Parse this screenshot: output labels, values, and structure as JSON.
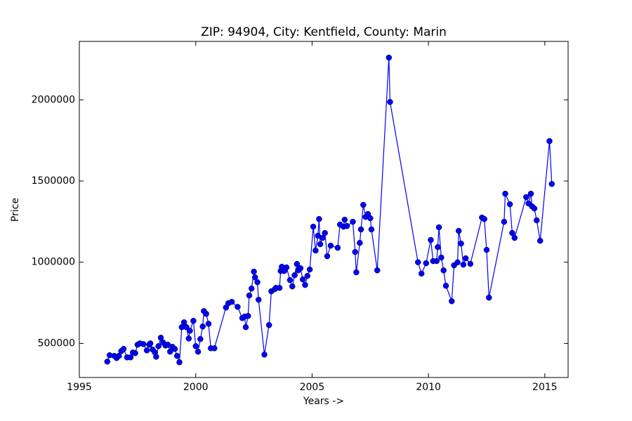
{
  "chart_data": {
    "type": "line",
    "title": "ZIP: 94904, City: Kentfield, County: Marin",
    "x_label": "Years ->",
    "y_label": "Price",
    "xlim": [
      1995,
      2016
    ],
    "xticks": [
      1995,
      2000,
      2005,
      2010,
      2015
    ],
    "ylim": [
      290000,
      2360000
    ],
    "yticks": [
      500000,
      1000000,
      1500000,
      2000000
    ],
    "grid": false,
    "series": [
      {
        "name": "Price",
        "color": "#0000ff",
        "x": [
          1996.2,
          1996.3,
          1996.5,
          1996.6,
          1996.7,
          1996.8,
          1996.9,
          1997.05,
          1997.2,
          1997.3,
          1997.4,
          1997.5,
          1997.6,
          1997.75,
          1997.9,
          1998.0,
          1998.05,
          1998.15,
          1998.25,
          1998.3,
          1998.4,
          1998.5,
          1998.6,
          1998.7,
          1998.8,
          1998.9,
          1999.0,
          1999.1,
          1999.2,
          1999.3,
          1999.4,
          1999.5,
          1999.6,
          1999.7,
          1999.75,
          1999.9,
          2000.0,
          2000.1,
          2000.2,
          2000.3,
          2000.35,
          2000.45,
          2000.55,
          2000.65,
          2000.8,
          2001.3,
          2001.4,
          2001.55,
          2001.8,
          2002.0,
          2002.1,
          2002.15,
          2002.25,
          2002.3,
          2002.4,
          2002.5,
          2002.55,
          2002.65,
          2002.7,
          2002.95,
          2003.15,
          2003.25,
          2003.4,
          2003.45,
          2003.6,
          2003.65,
          2003.7,
          2003.8,
          2003.9,
          2004.05,
          2004.15,
          2004.25,
          2004.35,
          2004.4,
          2004.5,
          2004.6,
          2004.7,
          2004.8,
          2004.9,
          2005.05,
          2005.15,
          2005.25,
          2005.3,
          2005.35,
          2005.45,
          2005.55,
          2005.65,
          2005.8,
          2006.1,
          2006.2,
          2006.35,
          2006.4,
          2006.5,
          2006.75,
          2006.85,
          2006.9,
          2007.05,
          2007.1,
          2007.2,
          2007.3,
          2007.4,
          2007.5,
          2007.55,
          2007.8,
          2008.3,
          2008.35,
          2009.55,
          2009.7,
          2009.9,
          2010.1,
          2010.2,
          2010.35,
          2010.4,
          2010.45,
          2010.55,
          2010.65,
          2010.75,
          2011.0,
          2011.1,
          2011.25,
          2011.3,
          2011.4,
          2011.5,
          2011.6,
          2011.8,
          2012.3,
          2012.4,
          2012.5,
          2012.6,
          2013.25,
          2013.3,
          2013.5,
          2013.6,
          2013.7,
          2014.2,
          2014.3,
          2014.4,
          2014.45,
          2014.55,
          2014.65,
          2014.8,
          2015.2,
          2015.3
        ],
        "values": [
          388000,
          427000,
          423000,
          410000,
          423000,
          453000,
          466000,
          414000,
          414000,
          444000,
          440000,
          492000,
          500000,
          496000,
          457000,
          492000,
          500000,
          462000,
          444000,
          418000,
          483000,
          535000,
          505000,
          487000,
          492000,
          449000,
          479000,
          466000,
          423000,
          384000,
          600000,
          630000,
          600000,
          530000,
          578000,
          639000,
          483000,
          449000,
          527000,
          604000,
          699000,
          682000,
          621000,
          470000,
          470000,
          721000,
          747000,
          756000,
          725000,
          656000,
          665000,
          600000,
          669000,
          795000,
          838000,
          942000,
          907000,
          877000,
          769000,
          431000,
          613000,
          821000,
          834000,
          842000,
          842000,
          946000,
          972000,
          946000,
          968000,
          890000,
          851000,
          920000,
          989000,
          950000,
          963000,
          894000,
          860000,
          916000,
          955000,
          1219000,
          1072000,
          1163000,
          1266000,
          1111000,
          1150000,
          1180000,
          1037000,
          1102000,
          1089000,
          1232000,
          1219000,
          1262000,
          1223000,
          1249000,
          1063000,
          938000,
          1119000,
          1202000,
          1353000,
          1279000,
          1297000,
          1271000,
          1202000,
          950000,
          2260000,
          1987000,
          1000000,
          930000,
          994000,
          1137000,
          1007000,
          1007000,
          1093000,
          1215000,
          1029000,
          950000,
          855000,
          760000,
          981000,
          999000,
          1193000,
          1115000,
          985000,
          1024000,
          990000,
          1275000,
          1266000,
          1076000,
          782000,
          1249000,
          1422000,
          1357000,
          1180000,
          1150000,
          1401000,
          1362000,
          1422000,
          1344000,
          1331000,
          1258000,
          1132000,
          1746000,
          1482000
        ]
      }
    ]
  }
}
